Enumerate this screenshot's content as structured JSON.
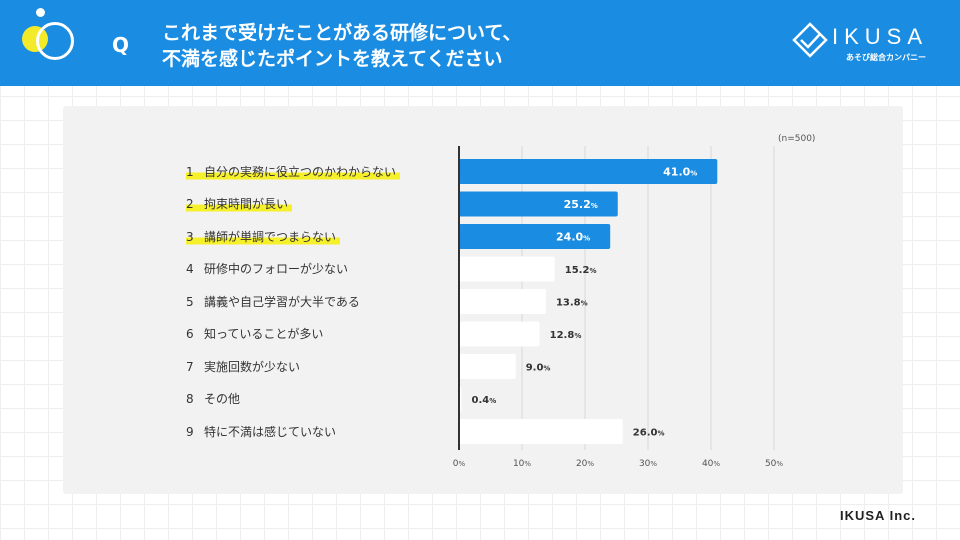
{
  "header": {
    "q_mark": "Q",
    "question_line1": "これまで受けたことがある研修について、",
    "question_line2": "不満を感じたポイントを教えてください",
    "logo_text": "IKUSA",
    "logo_sub": "あそび総合カンパニー"
  },
  "footer": {
    "company": "IKUSA Inc."
  },
  "colors": {
    "header_bg": "#1a8de3",
    "bar_highlight": "#1a8de3",
    "bar_normal": "#ffffff",
    "marker": "#f6f02a"
  },
  "chart_data": {
    "type": "bar",
    "orientation": "horizontal",
    "note": "(n=500)",
    "categories": [
      {
        "num": "1",
        "label": "自分の実務に役立つのかわからない",
        "highlight": true
      },
      {
        "num": "2",
        "label": "拘束時間が長い",
        "highlight": true
      },
      {
        "num": "3",
        "label": "講師が単調でつまらない",
        "highlight": true
      },
      {
        "num": "4",
        "label": "研修中のフォローが少ない",
        "highlight": false
      },
      {
        "num": "5",
        "label": "講義や自己学習が大半である",
        "highlight": false
      },
      {
        "num": "6",
        "label": "知っていることが多い",
        "highlight": false
      },
      {
        "num": "7",
        "label": "実施回数が少ない",
        "highlight": false
      },
      {
        "num": "8",
        "label": "その他",
        "highlight": false
      },
      {
        "num": "9",
        "label": "特に不満は感じていない",
        "highlight": false
      }
    ],
    "values": [
      41.0,
      25.2,
      24.0,
      15.2,
      13.8,
      12.8,
      9.0,
      0.4,
      26.0
    ],
    "value_labels": [
      "41.0",
      "25.2",
      "24.0",
      "15.2",
      "13.8",
      "12.8",
      "9.0",
      "0.4",
      "26.0"
    ],
    "unit": "%",
    "xlim": [
      0,
      50
    ],
    "xticks": [
      0,
      10,
      20,
      30,
      40,
      50
    ],
    "xtick_labels": [
      "0",
      "10",
      "20",
      "30",
      "40",
      "50"
    ]
  }
}
